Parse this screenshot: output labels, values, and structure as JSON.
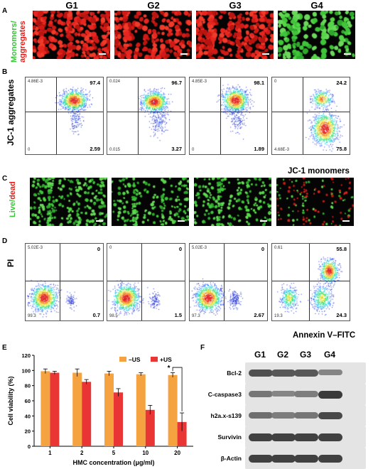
{
  "panels": {
    "A": "A",
    "B": "B",
    "C": "C",
    "D": "D",
    "E": "E",
    "F": "F"
  },
  "groups": [
    "G1",
    "G2",
    "G3",
    "G4"
  ],
  "panelA": {
    "ylabel_green": "Monomers/",
    "ylabel_red": "aggregates",
    "colors": {
      "red": "#e0201b",
      "green": "#39c43a"
    }
  },
  "panelB": {
    "ylabel": "JC-1 aggregates",
    "xlabel": "JC-1 monomers",
    "quadrants": [
      {
        "ul": "4.86E-3",
        "ur": "97.4",
        "ll": "0",
        "lr": "2.59"
      },
      {
        "ul": "0.024",
        "ur": "96.7",
        "ll": "0.015",
        "lr": "3.27"
      },
      {
        "ul": "4.85E-3",
        "ur": "98.1",
        "ll": "0",
        "lr": "1.89"
      },
      {
        "ul": "0",
        "ur": "24.2",
        "ll": "4.68E-3",
        "lr": "75.8"
      }
    ]
  },
  "panelC": {
    "ylabel_green": "Live/",
    "ylabel_red": "dead"
  },
  "panelD": {
    "ylabel": "PI",
    "xlabel": "Annexin V–FITC",
    "quadrants": [
      {
        "ul": "5.02E-3",
        "ur": "0",
        "ll": "99.3",
        "lr": "0.7"
      },
      {
        "ul": "0",
        "ur": "0",
        "ll": "98.5",
        "lr": "1.5"
      },
      {
        "ul": "5.02E-3",
        "ur": "0",
        "ll": "97.3",
        "lr": "2.67"
      },
      {
        "ul": "0.61",
        "ur": "55.8",
        "ll": "19.3",
        "lr": "24.3"
      }
    ]
  },
  "chart_data": {
    "type": "bar",
    "categories": [
      "1",
      "2",
      "5",
      "10",
      "20"
    ],
    "series": [
      {
        "name": "–US",
        "values": [
          99,
          97,
          96,
          95,
          94
        ],
        "errors": [
          3,
          5,
          3,
          2,
          3
        ],
        "color": "#f5a340"
      },
      {
        "name": "+US",
        "values": [
          97,
          85,
          71,
          48,
          32
        ],
        "errors": [
          2,
          3,
          5,
          6,
          12
        ],
        "color": "#ea3535"
      }
    ],
    "xlabel": "HMC concentration (μg/ml)",
    "ylabel": "Cell viability (%)",
    "yticks": [
      "0",
      "20",
      "40",
      "60",
      "80",
      "100",
      "120"
    ],
    "ylim": [
      0,
      120
    ],
    "significance": "*",
    "legend": "top-right"
  },
  "panelF": {
    "groups": [
      "G1",
      "G2",
      "G3",
      "G4"
    ],
    "rows": [
      {
        "label": "Bcl-2",
        "intensity": [
          0.8,
          0.75,
          0.75,
          0.45
        ]
      },
      {
        "label": "C-caspase3",
        "intensity": [
          0.55,
          0.45,
          0.5,
          0.95
        ]
      },
      {
        "label": "h2a.x-s139",
        "intensity": [
          0.6,
          0.5,
          0.55,
          0.85
        ]
      },
      {
        "label": "Survivin",
        "intensity": [
          0.9,
          0.9,
          0.9,
          0.9
        ]
      },
      {
        "label": "β-Actin",
        "intensity": [
          0.9,
          0.9,
          0.9,
          0.9
        ]
      }
    ]
  }
}
